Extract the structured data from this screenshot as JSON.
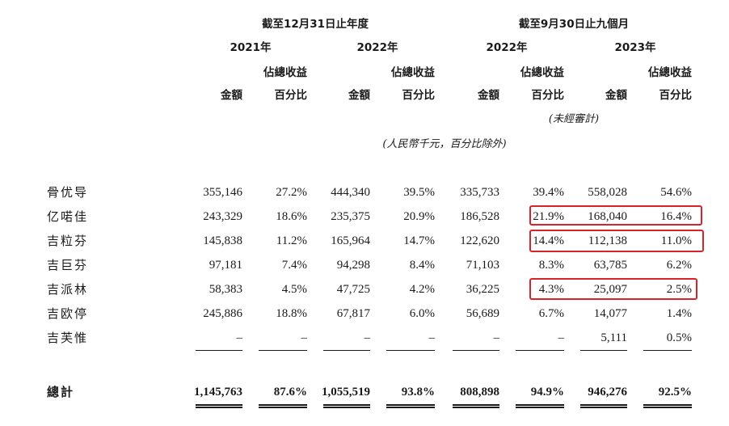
{
  "header": {
    "group_year": "截至12月31日止年度",
    "group_nine": "截至9月30日止九個月",
    "years": [
      "2021年",
      "2022年",
      "2022年",
      "2023年"
    ],
    "amount_label": "金額",
    "pct_label_line1": "佔總收益",
    "pct_label_line2": "百分比",
    "unaudited": "(未經審計)",
    "unit_note": "(人民幣千元，百分比除外)"
  },
  "rows": [
    {
      "name": "骨优导",
      "v": [
        "355,146",
        "27.2%",
        "444,340",
        "39.5%",
        "335,733",
        "39.4%",
        "558,028",
        "54.6%"
      ]
    },
    {
      "name": "亿喏佳",
      "v": [
        "243,329",
        "18.6%",
        "235,375",
        "20.9%",
        "186,528",
        "21.9%",
        "168,040",
        "16.4%"
      ]
    },
    {
      "name": "吉粒芬",
      "v": [
        "145,838",
        "11.2%",
        "165,964",
        "14.7%",
        "122,620",
        "14.4%",
        "112,138",
        "11.0%"
      ]
    },
    {
      "name": "吉巨芬",
      "v": [
        "97,181",
        "7.4%",
        "94,298",
        "8.4%",
        "71,103",
        "8.3%",
        "63,785",
        "6.2%"
      ]
    },
    {
      "name": "吉派林",
      "v": [
        "58,383",
        "4.5%",
        "47,725",
        "4.2%",
        "36,225",
        "4.3%",
        "25,097",
        "2.5%"
      ]
    },
    {
      "name": "吉欧停",
      "v": [
        "245,886",
        "18.8%",
        "67,817",
        "6.0%",
        "56,689",
        "6.7%",
        "14,077",
        "1.4%"
      ]
    },
    {
      "name": "吉芙惟",
      "v": [
        "–",
        "–",
        "–",
        "–",
        "–",
        "–",
        "5,111",
        "0.5%"
      ]
    }
  ],
  "total": {
    "name": "總計",
    "v": [
      "1,145,763",
      "87.6%",
      "1,055,519",
      "93.8%",
      "808,898",
      "94.9%",
      "946,276",
      "92.5%"
    ]
  },
  "highlight_color": "#d8232a"
}
